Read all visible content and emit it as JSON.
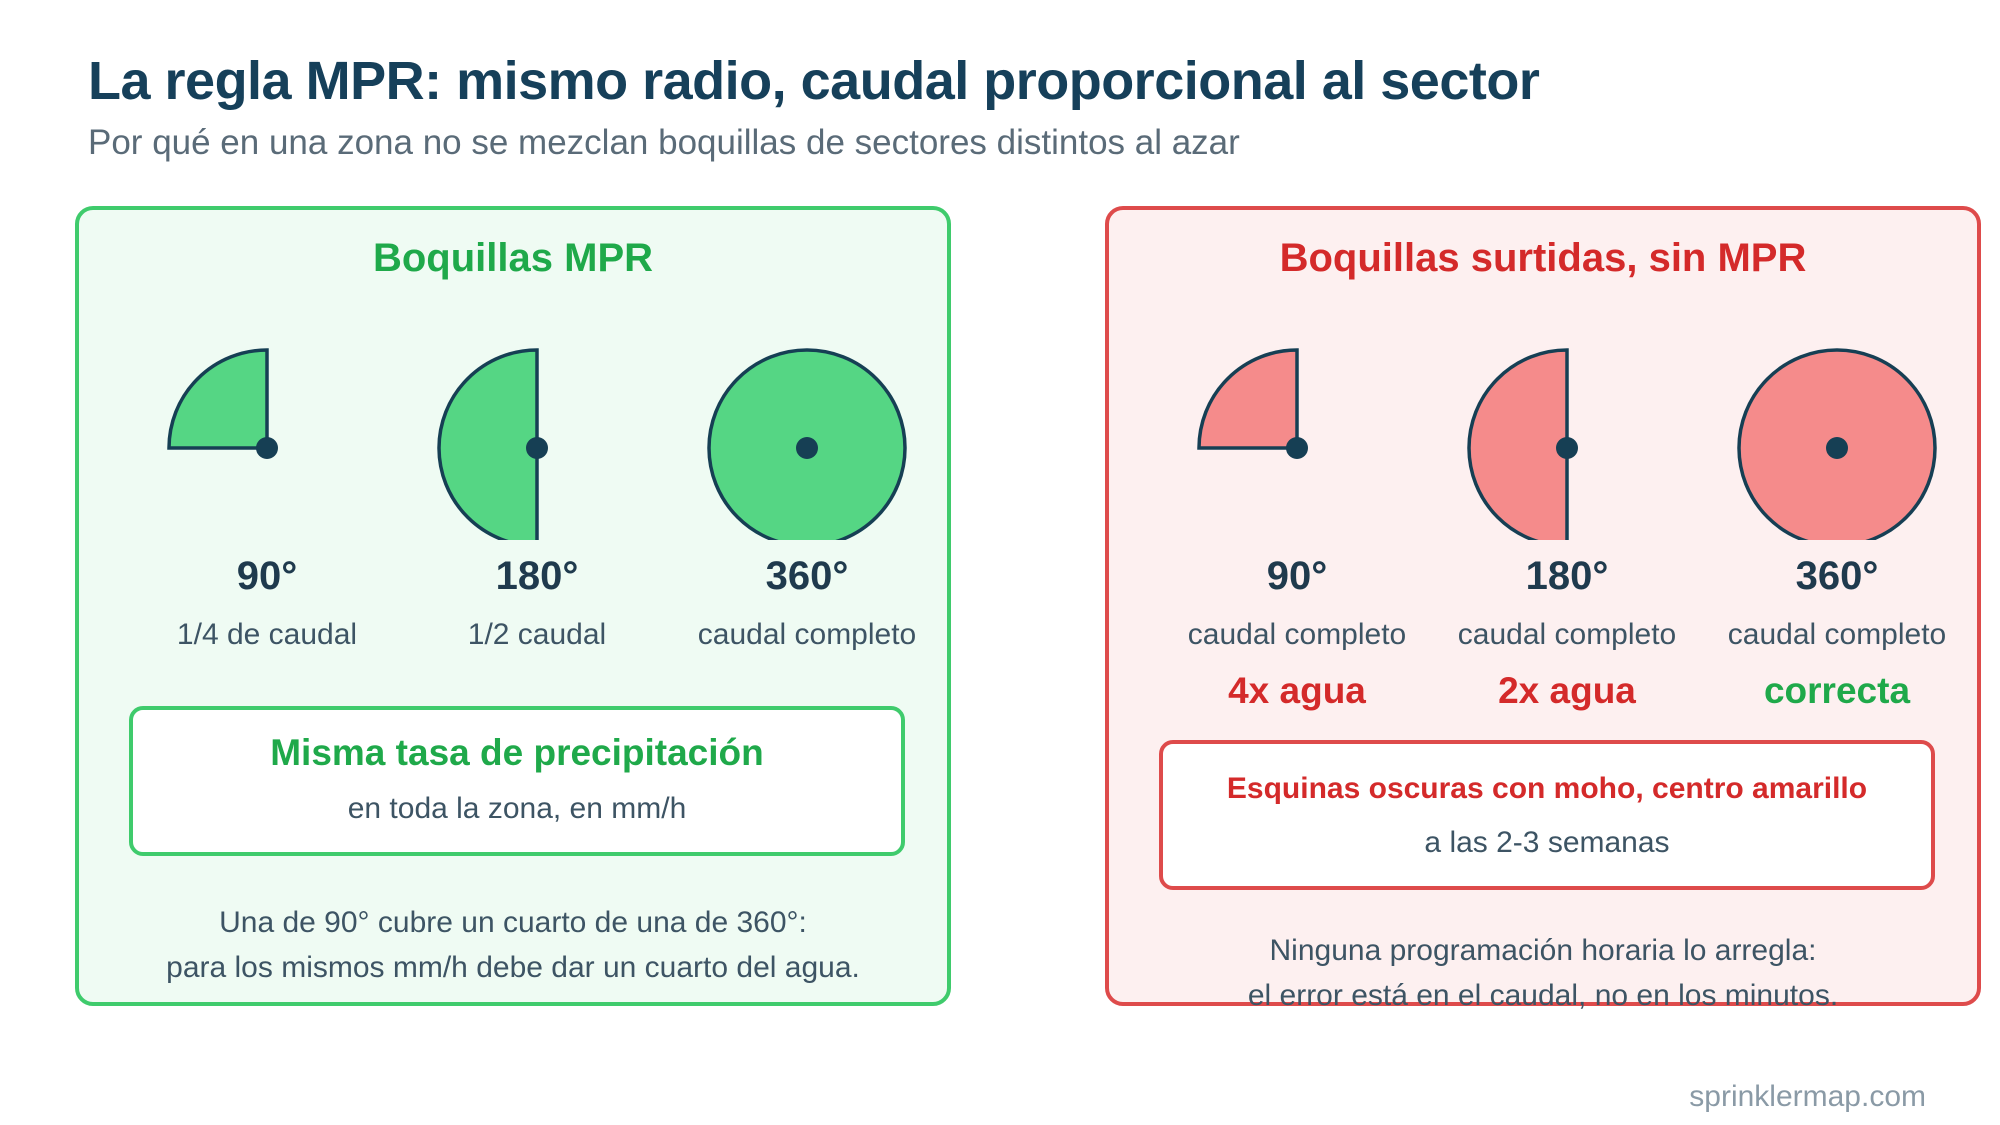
{
  "title": "La regla MPR: mismo radio, caudal proporcional al sector",
  "subtitle": "Por qué en una zona no se mezclan boquillas de sectores distintos al azar",
  "colors": {
    "good_fill": "#55d684",
    "bad_fill": "#f58b8b",
    "outline": "#163f54",
    "good_accent": "#1fa94a",
    "bad_accent": "#d42a2a"
  },
  "left_panel": {
    "title": "Boquillas MPR",
    "nozzles": [
      {
        "degrees": 90,
        "label": "90°",
        "flow": "1/4 de caudal"
      },
      {
        "degrees": 180,
        "label": "180°",
        "flow": "1/2 caudal"
      },
      {
        "degrees": 360,
        "label": "360°",
        "flow": "caudal completo"
      }
    ],
    "callout": {
      "title": "Misma tasa de precipitación",
      "subtitle": "en toda la zona, en mm/h"
    },
    "note": [
      "Una de 90° cubre un cuarto de una de 360°:",
      "para los mismos mm/h debe dar un cuarto del agua."
    ]
  },
  "right_panel": {
    "title": "Boquillas surtidas, sin MPR",
    "nozzles": [
      {
        "degrees": 90,
        "label": "90°",
        "flow": "caudal completo",
        "verdict": "4x agua",
        "verdict_status": "bad"
      },
      {
        "degrees": 180,
        "label": "180°",
        "flow": "caudal completo",
        "verdict": "2x agua",
        "verdict_status": "bad"
      },
      {
        "degrees": 360,
        "label": "360°",
        "flow": "caudal completo",
        "verdict": "correcta",
        "verdict_status": "ok"
      }
    ],
    "callout": {
      "title": "Esquinas oscuras con moho, centro amarillo",
      "subtitle": "a las 2-3 semanas"
    },
    "note": [
      "Ninguna programación horaria lo arregla:",
      "el error está en el caudal, no en los minutos."
    ]
  },
  "footer": "sprinklermap.com"
}
